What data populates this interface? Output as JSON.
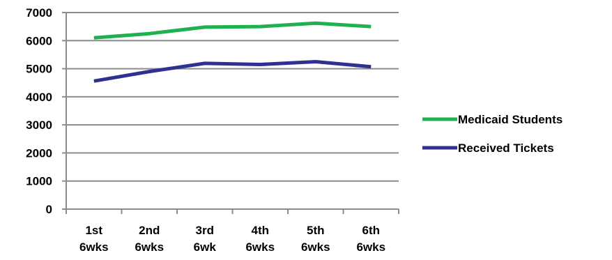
{
  "chart_data": {
    "type": "line",
    "categories": [
      [
        "1st",
        "6wks"
      ],
      [
        "2nd",
        "6wks"
      ],
      [
        "3rd",
        "6wk"
      ],
      [
        "4th",
        "6wks"
      ],
      [
        "5th",
        "6wks"
      ],
      [
        "6th",
        "6wks"
      ]
    ],
    "series": [
      {
        "name": "Medicaid Students",
        "color": "#1fb04f",
        "values": [
          6100,
          6250,
          6480,
          6500,
          6620,
          6500
        ]
      },
      {
        "name": "Received Tickets",
        "color": "#2e3192",
        "values": [
          4560,
          4900,
          5190,
          5150,
          5250,
          5070
        ]
      }
    ],
    "ylim": [
      0,
      7000
    ],
    "yticks": [
      0,
      1000,
      2000,
      3000,
      4000,
      5000,
      6000,
      7000
    ],
    "grid": true,
    "legend": "right",
    "title": "",
    "xlabel": "",
    "ylabel": ""
  }
}
